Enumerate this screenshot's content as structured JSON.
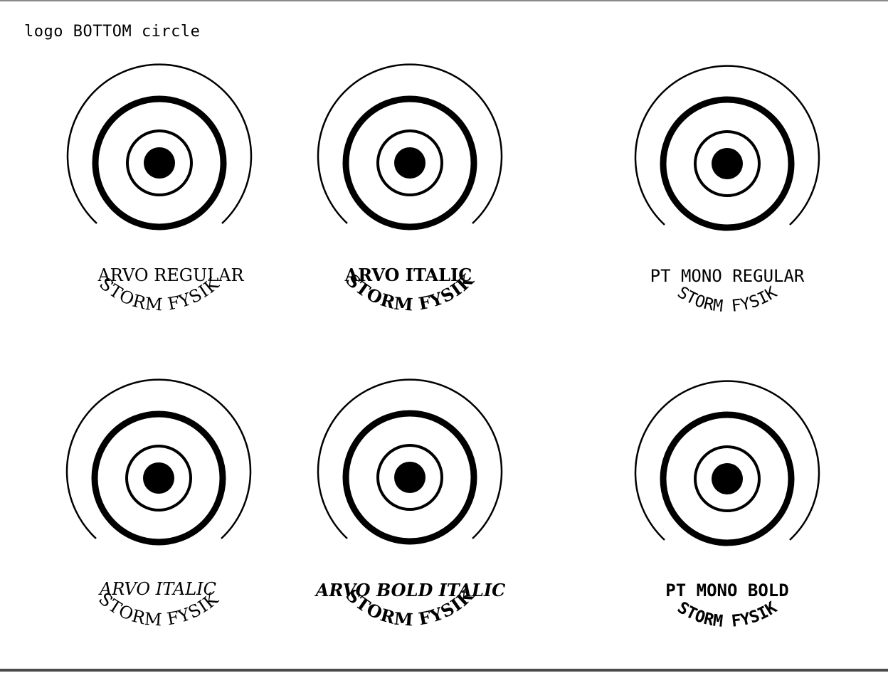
{
  "page": {
    "title": "logo BOTTOM circle"
  },
  "logos": [
    {
      "ring_text": "STORM FYSIK",
      "caption": "ARVO REGULAR"
    },
    {
      "ring_text": "STORM FYSIK",
      "caption": "ARVO ITALIC"
    },
    {
      "ring_text": "STORM FYSIK",
      "caption": "PT MONO REGULAR"
    },
    {
      "ring_text": "STORM FYSIK",
      "caption": "ARVO ITALIC"
    },
    {
      "ring_text": "STORM FYSIK",
      "caption": "ARVO BOLD ITALIC"
    },
    {
      "ring_text": "STORM FYSIK",
      "caption": "PT MONO BOLD"
    }
  ],
  "colors": {
    "ink": "#000000",
    "background": "#ffffff"
  }
}
